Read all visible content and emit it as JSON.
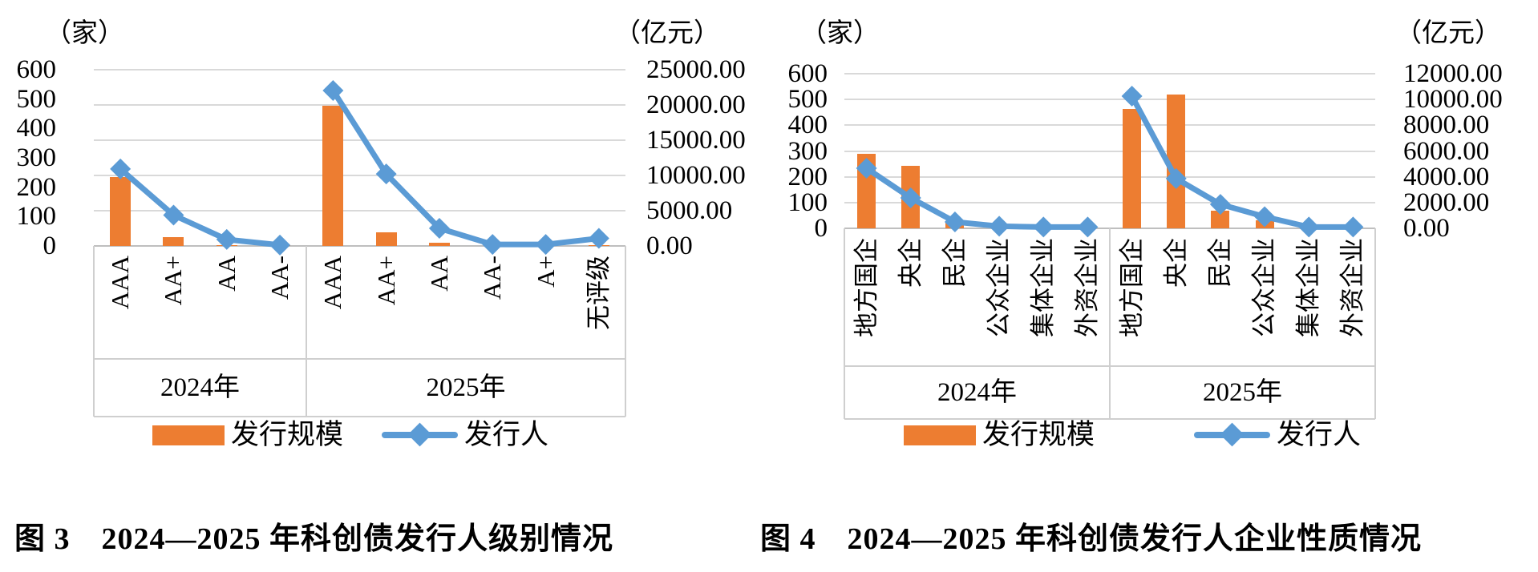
{
  "colors": {
    "bar": "#ED7D31",
    "line": "#5B9BD5",
    "gridline": "#D9D9D9",
    "axis_line": "#BFBFBF",
    "text": "#000000"
  },
  "chart_data": [
    {
      "type": "bar+line combo",
      "caption": "图 3　2024—2025 年科创债发行人级别情况",
      "left_axis_title": "（家）",
      "right_axis_title": "（亿元）",
      "left_ticks": [
        "600",
        "500",
        "400",
        "300",
        "200",
        "100",
        "0"
      ],
      "right_ticks": [
        "25000.00",
        "20000.00",
        "15000.00",
        "10000.00",
        "5000.00",
        "0.00"
      ],
      "left_max": 600,
      "right_max": 25000,
      "legend": {
        "bar": "发行规模",
        "line": "发行人"
      },
      "groups": [
        {
          "label": "2024年",
          "categories": [
            "AAA",
            "AA+",
            "AA",
            "AA-"
          ],
          "bars": [
            9800,
            1300,
            150,
            50
          ],
          "line": [
            262,
            105,
            22,
            3
          ]
        },
        {
          "label": "2025年",
          "categories": [
            "AAA",
            "AA+",
            "AA",
            "AA-",
            "A+",
            "无评级"
          ],
          "bars": [
            19850,
            1930,
            430,
            0,
            0,
            120
          ],
          "line": [
            529,
            245,
            60,
            5,
            5,
            26
          ]
        }
      ]
    },
    {
      "type": "bar+line combo",
      "caption": "图 4　2024—2025 年科创债发行人企业性质情况",
      "left_axis_title": "（家）",
      "right_axis_title": "（亿元）",
      "left_ticks": [
        "600",
        "500",
        "400",
        "300",
        "200",
        "100",
        "0"
      ],
      "right_ticks": [
        "12000.00",
        "10000.00",
        "8000.00",
        "6000.00",
        "4000.00",
        "2000.00",
        "0.00"
      ],
      "left_max": 600,
      "right_max": 12000,
      "legend": {
        "bar": "发行规模",
        "line": "发行人"
      },
      "groups": [
        {
          "label": "2024年",
          "categories": [
            "地方国企",
            "央企",
            "民企",
            "公众企业",
            "集体企业",
            "外资企业"
          ],
          "bars": [
            5800,
            4850,
            430,
            50,
            20,
            20
          ],
          "line": [
            233,
            118,
            25,
            8,
            5,
            5
          ]
        },
        {
          "label": "2025年",
          "categories": [
            "地方国企",
            "央企",
            "民企",
            "公众企业",
            "集体企业",
            "外资企业"
          ],
          "bars": [
            9250,
            10400,
            1370,
            620,
            30,
            30
          ],
          "line": [
            513,
            193,
            93,
            45,
            5,
            5
          ]
        }
      ]
    }
  ]
}
